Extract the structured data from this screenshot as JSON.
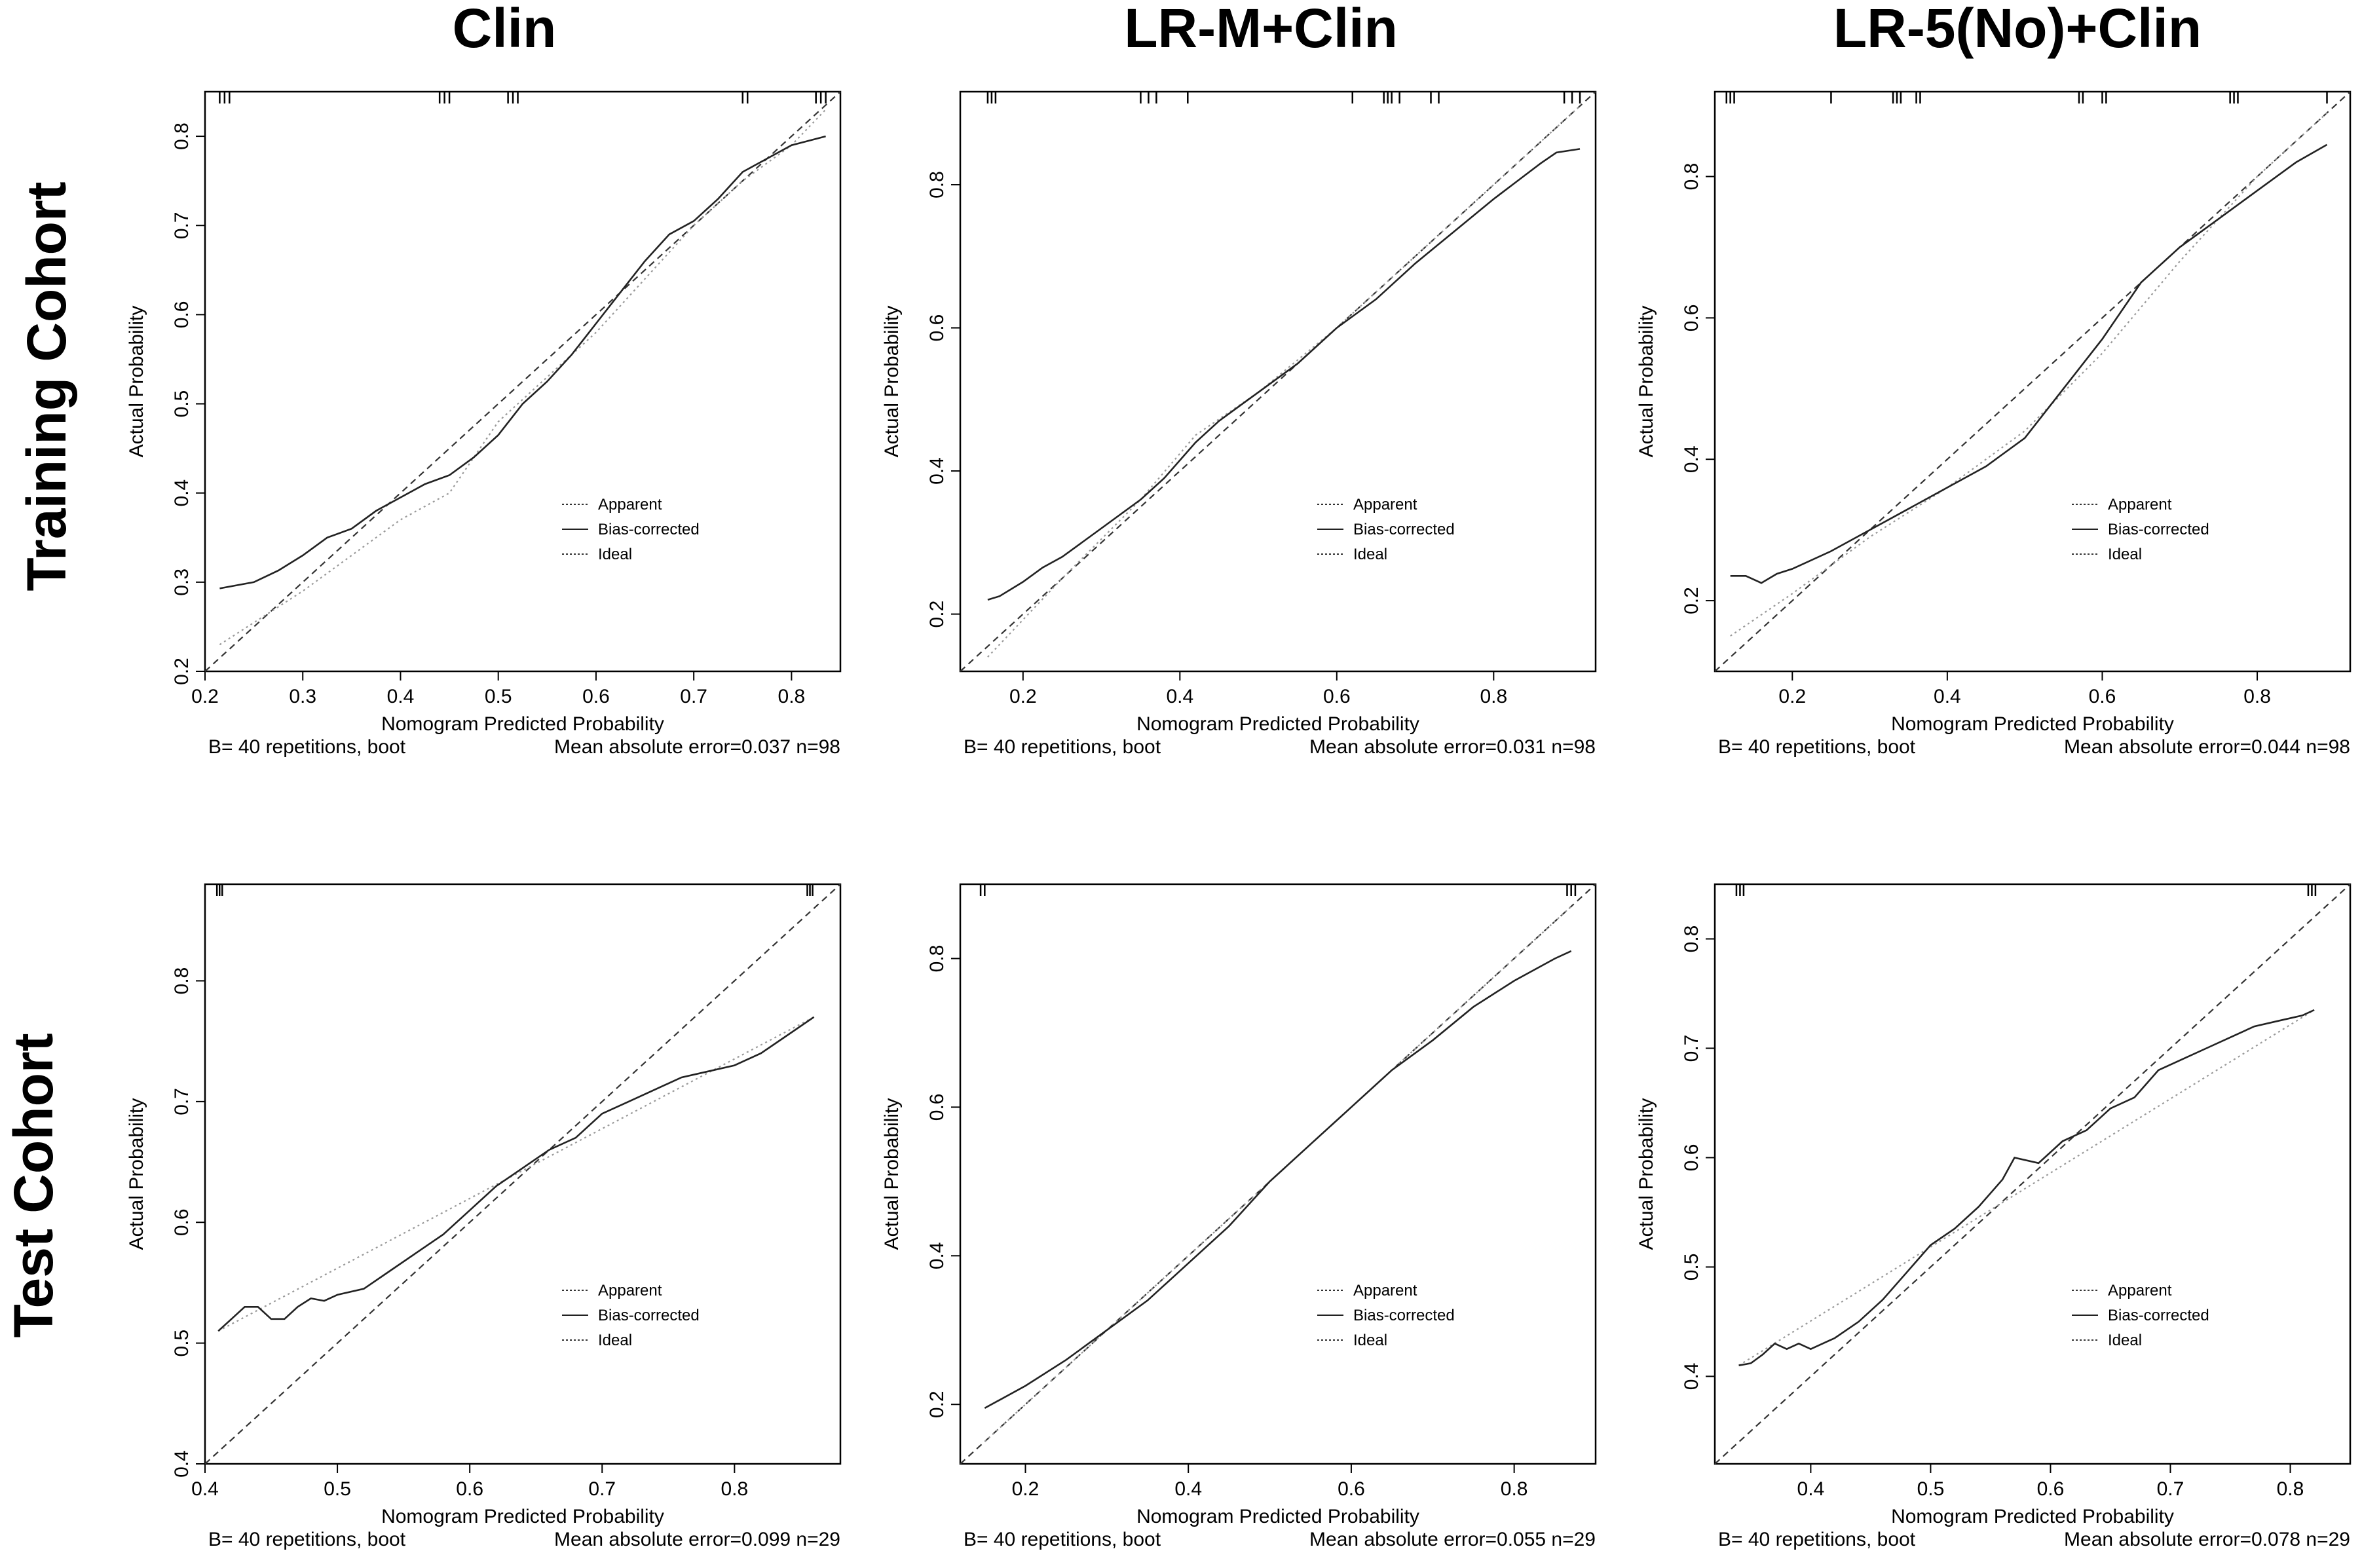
{
  "column_titles": [
    "Clin",
    "LR-M+Clin",
    "LR-5(No)+Clin"
  ],
  "row_titles": [
    "Training Cohort",
    "Test Cohort"
  ],
  "chart_data": [
    {
      "type": "line",
      "title": "Clin",
      "cohort": "Training Cohort",
      "xlabel": "Nomogram Predicted Probability",
      "ylabel": "Actual Probability",
      "xlim": [
        0.2,
        0.85
      ],
      "ylim": [
        0.2,
        0.85
      ],
      "xticks": [
        0.2,
        0.3,
        0.4,
        0.5,
        0.6,
        0.7,
        0.8
      ],
      "yticks": [
        0.2,
        0.3,
        0.4,
        0.5,
        0.6,
        0.7,
        0.8
      ],
      "legend": [
        "Apparent",
        "Bias-corrected",
        "Ideal"
      ],
      "footer_left": "B= 40 repetitions, boot",
      "footer_right": "Mean absolute error=0.037 n=98",
      "rug": [
        0.215,
        0.22,
        0.225,
        0.44,
        0.445,
        0.45,
        0.51,
        0.515,
        0.52,
        0.75,
        0.755,
        0.825,
        0.83,
        0.835
      ],
      "series": [
        {
          "name": "Apparent",
          "x": [
            0.215,
            0.3,
            0.35,
            0.4,
            0.45,
            0.5,
            0.55,
            0.6,
            0.65,
            0.7,
            0.75,
            0.8,
            0.835
          ],
          "y": [
            0.23,
            0.29,
            0.33,
            0.37,
            0.4,
            0.48,
            0.53,
            0.58,
            0.64,
            0.7,
            0.75,
            0.79,
            0.83
          ]
        },
        {
          "name": "Bias-corrected",
          "x": [
            0.215,
            0.25,
            0.275,
            0.3,
            0.325,
            0.35,
            0.375,
            0.4,
            0.425,
            0.45,
            0.475,
            0.5,
            0.525,
            0.55,
            0.575,
            0.6,
            0.625,
            0.65,
            0.675,
            0.7,
            0.725,
            0.75,
            0.775,
            0.8,
            0.835
          ],
          "y": [
            0.293,
            0.3,
            0.313,
            0.33,
            0.35,
            0.36,
            0.38,
            0.395,
            0.41,
            0.42,
            0.44,
            0.465,
            0.5,
            0.525,
            0.555,
            0.59,
            0.625,
            0.66,
            0.69,
            0.705,
            0.73,
            0.76,
            0.775,
            0.79,
            0.8
          ]
        },
        {
          "name": "Ideal",
          "x": [
            0.2,
            0.85
          ],
          "y": [
            0.2,
            0.85
          ]
        }
      ]
    },
    {
      "type": "line",
      "title": "LR-M+Clin",
      "cohort": "Training Cohort",
      "xlabel": "Nomogram Predicted Probability",
      "ylabel": "Actual Probability",
      "xlim": [
        0.12,
        0.93
      ],
      "ylim": [
        0.12,
        0.93
      ],
      "xticks": [
        0.2,
        0.4,
        0.6,
        0.8
      ],
      "yticks": [
        0.2,
        0.4,
        0.6,
        0.8
      ],
      "legend": [
        "Apparent",
        "Bias-corrected",
        "Ideal"
      ],
      "footer_left": "B= 40 repetitions, boot",
      "footer_right": "Mean absolute error=0.031 n=98",
      "rug": [
        0.155,
        0.16,
        0.165,
        0.35,
        0.36,
        0.37,
        0.41,
        0.62,
        0.66,
        0.665,
        0.67,
        0.68,
        0.72,
        0.73,
        0.89,
        0.9,
        0.91
      ],
      "series": [
        {
          "name": "Apparent",
          "x": [
            0.155,
            0.25,
            0.35,
            0.42,
            0.5,
            0.6,
            0.7,
            0.8,
            0.91
          ],
          "y": [
            0.14,
            0.25,
            0.36,
            0.45,
            0.51,
            0.6,
            0.7,
            0.8,
            0.91
          ]
        },
        {
          "name": "Bias-corrected",
          "x": [
            0.155,
            0.17,
            0.2,
            0.225,
            0.25,
            0.3,
            0.35,
            0.38,
            0.42,
            0.45,
            0.5,
            0.55,
            0.6,
            0.65,
            0.7,
            0.75,
            0.8,
            0.83,
            0.86,
            0.88,
            0.91
          ],
          "y": [
            0.22,
            0.225,
            0.245,
            0.265,
            0.28,
            0.32,
            0.36,
            0.39,
            0.44,
            0.47,
            0.51,
            0.55,
            0.6,
            0.64,
            0.69,
            0.735,
            0.78,
            0.805,
            0.83,
            0.845,
            0.85
          ]
        },
        {
          "name": "Ideal",
          "x": [
            0.12,
            0.93
          ],
          "y": [
            0.12,
            0.93
          ]
        }
      ]
    },
    {
      "type": "line",
      "title": "LR-5(No)+Clin",
      "cohort": "Training Cohort",
      "xlabel": "Nomogram Predicted Probability",
      "ylabel": "Actual Probability",
      "xlim": [
        0.1,
        0.92
      ],
      "ylim": [
        0.1,
        0.92
      ],
      "xticks": [
        0.2,
        0.4,
        0.6,
        0.8
      ],
      "yticks": [
        0.2,
        0.4,
        0.6,
        0.8
      ],
      "legend": [
        "Apparent",
        "Bias-corrected",
        "Ideal"
      ],
      "footer_left": "B= 40 repetitions, boot",
      "footer_right": "Mean absolute error=0.044 n=98",
      "rug": [
        0.115,
        0.12,
        0.125,
        0.25,
        0.33,
        0.335,
        0.34,
        0.36,
        0.365,
        0.57,
        0.575,
        0.6,
        0.605,
        0.765,
        0.77,
        0.775,
        0.89
      ],
      "series": [
        {
          "name": "Apparent",
          "x": [
            0.12,
            0.2,
            0.3,
            0.4,
            0.5,
            0.6,
            0.7,
            0.8,
            0.89
          ],
          "y": [
            0.15,
            0.21,
            0.29,
            0.36,
            0.44,
            0.55,
            0.68,
            0.8,
            0.89
          ]
        },
        {
          "name": "Bias-corrected",
          "x": [
            0.12,
            0.14,
            0.16,
            0.18,
            0.2,
            0.25,
            0.3,
            0.35,
            0.4,
            0.45,
            0.5,
            0.55,
            0.6,
            0.65,
            0.7,
            0.75,
            0.8,
            0.85,
            0.89
          ],
          "y": [
            0.235,
            0.235,
            0.225,
            0.238,
            0.245,
            0.27,
            0.3,
            0.33,
            0.36,
            0.39,
            0.43,
            0.5,
            0.57,
            0.65,
            0.7,
            0.74,
            0.78,
            0.82,
            0.845
          ]
        },
        {
          "name": "Ideal",
          "x": [
            0.1,
            0.92
          ],
          "y": [
            0.1,
            0.92
          ]
        }
      ]
    },
    {
      "type": "line",
      "title": "Clin",
      "cohort": "Test Cohort",
      "xlabel": "Nomogram Predicted Probability",
      "ylabel": "Actual Probability",
      "xlim": [
        0.4,
        0.88
      ],
      "ylim": [
        0.4,
        0.88
      ],
      "xticks": [
        0.4,
        0.5,
        0.6,
        0.7,
        0.8
      ],
      "yticks": [
        0.4,
        0.5,
        0.6,
        0.7,
        0.8
      ],
      "legend": [
        "Apparent",
        "Bias-corrected",
        "Ideal"
      ],
      "footer_left": "B= 40 repetitions, boot",
      "footer_right": "Mean absolute error=0.099 n=29",
      "rug": [
        0.409,
        0.411,
        0.413,
        0.855,
        0.857,
        0.859
      ],
      "series": [
        {
          "name": "Apparent",
          "x": [
            0.41,
            0.86
          ],
          "y": [
            0.51,
            0.77
          ]
        },
        {
          "name": "Bias-corrected",
          "x": [
            0.41,
            0.42,
            0.43,
            0.44,
            0.45,
            0.46,
            0.47,
            0.48,
            0.49,
            0.5,
            0.52,
            0.54,
            0.56,
            0.58,
            0.6,
            0.62,
            0.64,
            0.66,
            0.68,
            0.7,
            0.72,
            0.74,
            0.76,
            0.78,
            0.8,
            0.82,
            0.84,
            0.86
          ],
          "y": [
            0.51,
            0.52,
            0.53,
            0.53,
            0.52,
            0.52,
            0.53,
            0.537,
            0.535,
            0.54,
            0.545,
            0.56,
            0.575,
            0.59,
            0.61,
            0.63,
            0.645,
            0.66,
            0.67,
            0.69,
            0.7,
            0.71,
            0.72,
            0.725,
            0.73,
            0.74,
            0.755,
            0.77
          ]
        },
        {
          "name": "Ideal",
          "x": [
            0.4,
            0.88
          ],
          "y": [
            0.4,
            0.88
          ]
        }
      ]
    },
    {
      "type": "line",
      "title": "LR-M+Clin",
      "cohort": "Test Cohort",
      "xlabel": "Nomogram Predicted Probability",
      "ylabel": "Actual Probability",
      "xlim": [
        0.12,
        0.9
      ],
      "ylim": [
        0.12,
        0.9
      ],
      "xticks": [
        0.2,
        0.4,
        0.6,
        0.8
      ],
      "yticks": [
        0.2,
        0.4,
        0.6,
        0.8
      ],
      "legend": [
        "Apparent",
        "Bias-corrected",
        "Ideal"
      ],
      "footer_left": "B= 40 repetitions, boot",
      "footer_right": "Mean absolute error=0.055 n=29",
      "rug": [
        0.145,
        0.15,
        0.865,
        0.87,
        0.875
      ],
      "series": [
        {
          "name": "Apparent",
          "x": [
            0.15,
            0.3,
            0.4,
            0.5,
            0.6,
            0.7,
            0.8,
            0.87
          ],
          "y": [
            0.15,
            0.3,
            0.4,
            0.5,
            0.6,
            0.7,
            0.8,
            0.87
          ]
        },
        {
          "name": "Bias-corrected",
          "x": [
            0.15,
            0.2,
            0.25,
            0.3,
            0.35,
            0.4,
            0.45,
            0.5,
            0.55,
            0.6,
            0.65,
            0.7,
            0.75,
            0.8,
            0.85,
            0.87
          ],
          "y": [
            0.195,
            0.225,
            0.26,
            0.3,
            0.34,
            0.39,
            0.44,
            0.5,
            0.55,
            0.6,
            0.65,
            0.69,
            0.735,
            0.77,
            0.8,
            0.81
          ]
        },
        {
          "name": "Ideal",
          "x": [
            0.12,
            0.9
          ],
          "y": [
            0.12,
            0.9
          ]
        }
      ]
    },
    {
      "type": "line",
      "title": "LR-5(No)+Clin",
      "cohort": "Test Cohort",
      "xlabel": "Nomogram Predicted Probability",
      "ylabel": "Actual Probability",
      "xlim": [
        0.32,
        0.85
      ],
      "ylim": [
        0.32,
        0.85
      ],
      "xticks": [
        0.4,
        0.5,
        0.6,
        0.7,
        0.8
      ],
      "yticks": [
        0.4,
        0.5,
        0.6,
        0.7,
        0.8
      ],
      "legend": [
        "Apparent",
        "Bias-corrected",
        "Ideal"
      ],
      "footer_left": "B= 40 repetitions, boot",
      "footer_right": "Mean absolute error=0.078 n=29",
      "rug": [
        0.338,
        0.341,
        0.344,
        0.815,
        0.818,
        0.821
      ],
      "series": [
        {
          "name": "Apparent",
          "x": [
            0.34,
            0.82
          ],
          "y": [
            0.41,
            0.735
          ]
        },
        {
          "name": "Bias-corrected",
          "x": [
            0.34,
            0.35,
            0.36,
            0.37,
            0.38,
            0.39,
            0.4,
            0.42,
            0.44,
            0.46,
            0.48,
            0.5,
            0.52,
            0.54,
            0.56,
            0.57,
            0.59,
            0.61,
            0.63,
            0.65,
            0.67,
            0.69,
            0.71,
            0.73,
            0.75,
            0.77,
            0.79,
            0.81,
            0.82
          ],
          "y": [
            0.41,
            0.412,
            0.42,
            0.43,
            0.425,
            0.43,
            0.425,
            0.435,
            0.45,
            0.47,
            0.495,
            0.52,
            0.535,
            0.555,
            0.58,
            0.6,
            0.595,
            0.615,
            0.625,
            0.645,
            0.655,
            0.68,
            0.69,
            0.7,
            0.71,
            0.72,
            0.725,
            0.73,
            0.735
          ]
        },
        {
          "name": "Ideal",
          "x": [
            0.32,
            0.85
          ],
          "y": [
            0.32,
            0.85
          ]
        }
      ]
    }
  ]
}
